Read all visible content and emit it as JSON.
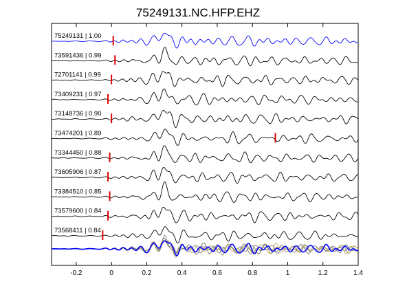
{
  "chart_data": {
    "type": "line",
    "title": "75249131.NC.HFP.EHZ",
    "xlabel": "",
    "ylabel": "",
    "xlim": [
      -0.34,
      1.4
    ],
    "x_ticks": [
      -0.2,
      0,
      0.2,
      0.4,
      0.6,
      0.8,
      1,
      1.2,
      1.4
    ],
    "x_tick_labels": [
      "-0.2",
      "0",
      "0.2",
      "0.4",
      "0.6",
      "0.8",
      "1",
      "1.2",
      "1.4"
    ],
    "grid": false,
    "colors": {
      "reference_trace": "#0000ff",
      "trace": "#000000",
      "pick": "#e00000",
      "stack_overlay": [
        "#b0a050",
        "#8c8c8c",
        "#a09060",
        "#7f7f7f",
        "#c0b070"
      ]
    },
    "series": [
      {
        "name": "75249131 | 1.00",
        "pick_time": 0.01,
        "reference": true
      },
      {
        "name": "73591436 | 0.99",
        "pick_time": 0.02
      },
      {
        "name": "72701141 | 0.99",
        "pick_time": 0.0
      },
      {
        "name": "73409231 | 0.97",
        "pick_time": -0.02
      },
      {
        "name": "73148736 | 0.90",
        "pick_time": 0.0
      },
      {
        "name": "73474201 | 0.89",
        "pick_time": 0.93
      },
      {
        "name": "73344450 | 0.88",
        "pick_time": -0.01
      },
      {
        "name": "73605906 | 0.87",
        "pick_time": -0.02
      },
      {
        "name": "73384510 | 0.85",
        "pick_time": -0.01
      },
      {
        "name": "73579600 | 0.84",
        "pick_time": -0.02
      },
      {
        "name": "73568411 | 0.84",
        "pick_time": -0.05
      }
    ]
  }
}
